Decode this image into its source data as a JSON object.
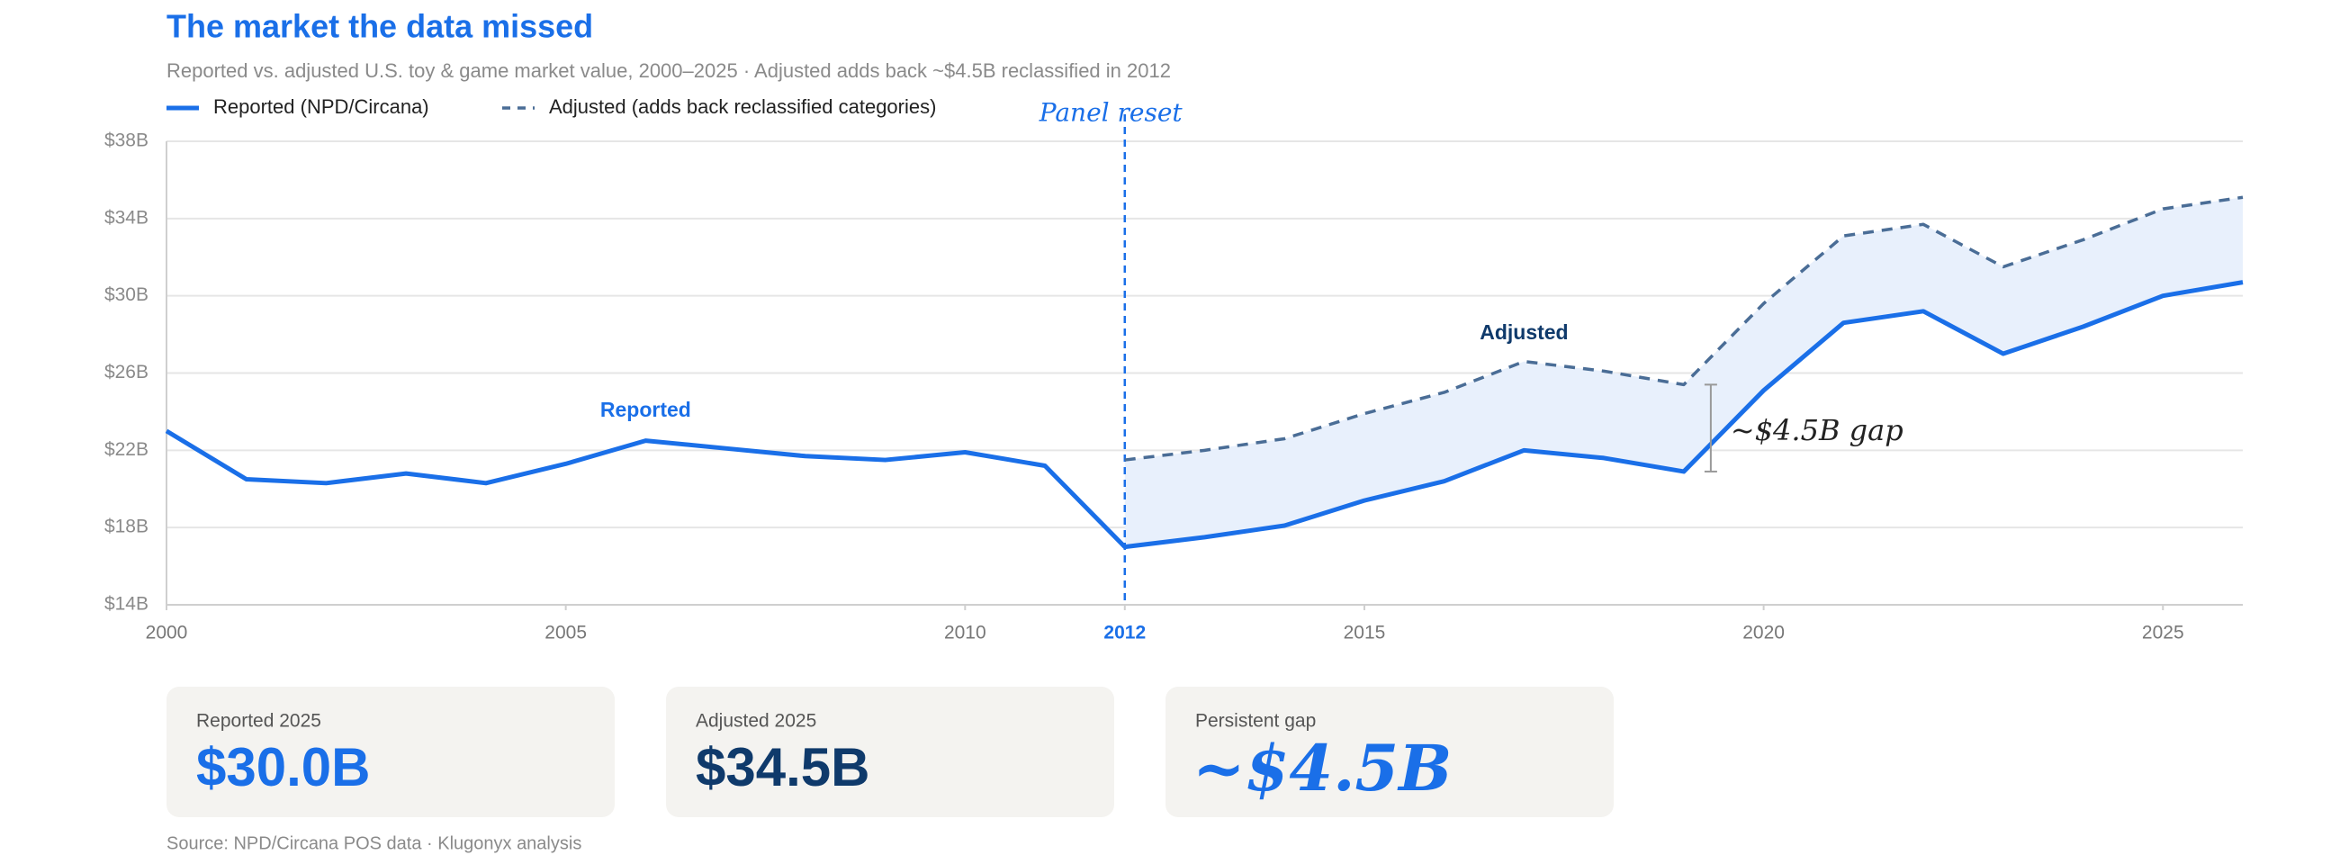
{
  "chart_data": {
    "type": "line",
    "title": "The market the data missed",
    "subtitle": "Reported vs. adjusted U.S. toy & game market value, 2000–2025 · Adjusted adds back ~$4.5B reclassified in 2012",
    "x": [
      2000,
      2001,
      2002,
      2003,
      2004,
      2005,
      2006,
      2007,
      2008,
      2009,
      2010,
      2011,
      2012,
      2013,
      2014,
      2015,
      2016,
      2017,
      2018,
      2019,
      2020,
      2021,
      2022,
      2023,
      2024,
      2025,
      2026
    ],
    "series": [
      {
        "name": "Reported (NPD/Circana)",
        "color": "#1a6fe8",
        "dashed": false,
        "values": [
          23.0,
          20.5,
          20.3,
          20.8,
          20.3,
          21.3,
          22.5,
          22.1,
          21.7,
          21.5,
          21.9,
          21.2,
          17.0,
          17.5,
          18.1,
          19.4,
          20.4,
          22.0,
          21.6,
          20.9,
          25.1,
          28.6,
          29.2,
          27.0,
          28.4,
          30.0,
          30.7
        ]
      },
      {
        "name": "Adjusted (adds back reclassified categories)",
        "color": "#4a6d96",
        "dashed": true,
        "values": [
          null,
          null,
          null,
          null,
          null,
          null,
          null,
          null,
          null,
          null,
          null,
          null,
          21.5,
          22.0,
          22.6,
          23.9,
          25.0,
          26.6,
          26.1,
          25.4,
          29.6,
          33.1,
          33.7,
          31.5,
          32.9,
          34.5,
          35.1
        ]
      }
    ],
    "xlim": [
      2000,
      2026
    ],
    "xticks": [
      2000,
      2005,
      2010,
      2012,
      2015,
      2020,
      2025
    ],
    "ylim": [
      14,
      38
    ],
    "yticks": [
      {
        "value": 14,
        "label": "$14B"
      },
      {
        "value": 18,
        "label": "$18B"
      },
      {
        "value": 22,
        "label": "$22B"
      },
      {
        "value": 26,
        "label": "$26B"
      },
      {
        "value": 30,
        "label": "$30B"
      },
      {
        "value": 34,
        "label": "$34B"
      },
      {
        "value": 38,
        "label": "$38B"
      }
    ],
    "grid": true,
    "reference_x": 2012,
    "annotations": [
      "Panel reset",
      "Reported",
      "Adjusted",
      "~$4.5B gap"
    ]
  },
  "cards": [
    {
      "label": "Reported 2025",
      "value": "$30.0B"
    },
    {
      "label": "Adjusted 2025",
      "value": "$34.5B"
    },
    {
      "label": "Persistent gap",
      "value": "~$4.5B"
    }
  ],
  "source": "Source: NPD/Circana POS data · Klugonyx analysis"
}
